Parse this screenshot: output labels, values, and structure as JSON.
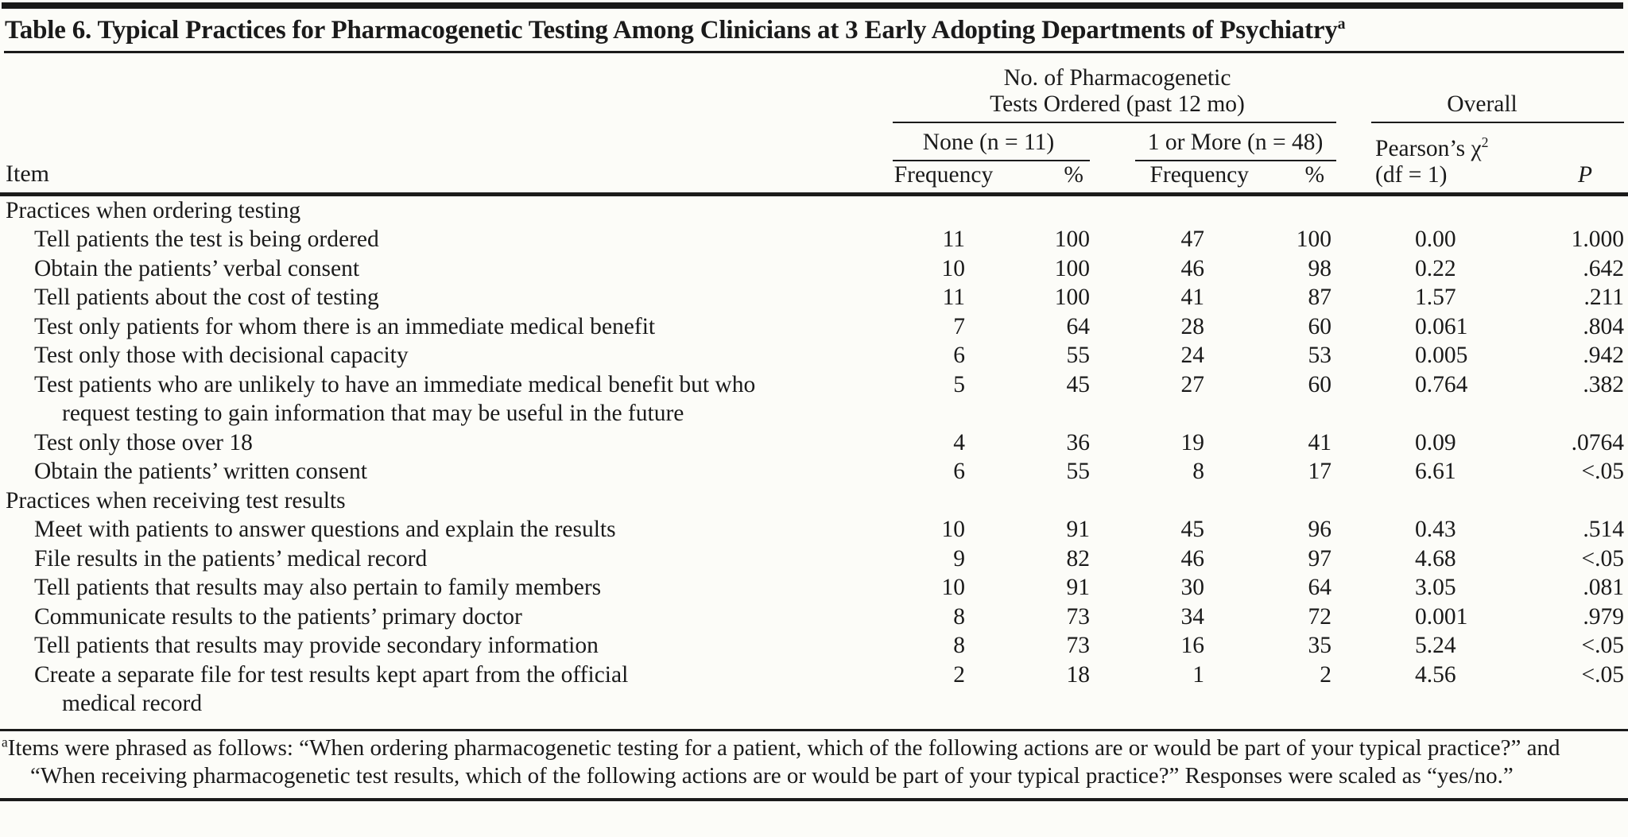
{
  "page": {
    "background_color": "#fcfcf8",
    "ink_color": "#1a1a1a"
  },
  "title": {
    "text": "Table 6. Typical Practices for Pharmacogenetic Testing Among Clinicians at 3 Early Adopting Departments of Psychiatry",
    "footnote_marker": "a"
  },
  "table": {
    "columns": {
      "item": "Item",
      "group_tests": {
        "line1": "No. of Pharmacogenetic",
        "line2": "Tests Ordered (past 12 mo)"
      },
      "group_overall": "Overall",
      "sub_none": "None (n = 11)",
      "sub_more": "1 or More (n = 48)",
      "frequency": "Frequency",
      "percent": "%",
      "chi": {
        "prefix": "Pearson’s χ",
        "sup": "2",
        "line2": "(df = 1)"
      },
      "p": "P"
    },
    "rows": [
      {
        "type": "section",
        "text": "Practices when ordering testing"
      },
      {
        "type": "item",
        "text": "Tell patients the test is being ordered",
        "values": [
          "11",
          "100",
          "47",
          "100",
          "0.00",
          "1.000"
        ]
      },
      {
        "type": "item",
        "text": "Obtain the patients’ verbal consent",
        "values": [
          "10",
          "100",
          "46",
          "98",
          "0.22",
          ".642"
        ]
      },
      {
        "type": "item",
        "text": "Tell patients about the cost of testing",
        "values": [
          "11",
          "100",
          "41",
          "87",
          "1.57",
          ".211"
        ]
      },
      {
        "type": "item",
        "text": "Test only patients for whom there is an immediate medical benefit",
        "values": [
          "7",
          "64",
          "28",
          "60",
          "0.061",
          ".804"
        ]
      },
      {
        "type": "item",
        "text": "Test only those with decisional capacity",
        "values": [
          "6",
          "55",
          "24",
          "53",
          "0.005",
          ".942"
        ]
      },
      {
        "type": "item",
        "text": "Test patients who are unlikely to have an immediate medical benefit but who",
        "text2": "request testing to gain information that may be useful in the future",
        "values": [
          "5",
          "45",
          "27",
          "60",
          "0.764",
          ".382"
        ]
      },
      {
        "type": "item",
        "text": "Test only those over 18",
        "values": [
          "4",
          "36",
          "19",
          "41",
          "0.09",
          ".0764"
        ]
      },
      {
        "type": "item",
        "text": "Obtain the patients’ written consent",
        "values": [
          "6",
          "55",
          "8",
          "17",
          "6.61",
          "<.05"
        ]
      },
      {
        "type": "section",
        "text": "Practices when receiving test results"
      },
      {
        "type": "item",
        "text": "Meet with patients to answer questions and explain the results",
        "values": [
          "10",
          "91",
          "45",
          "96",
          "0.43",
          ".514"
        ]
      },
      {
        "type": "item",
        "text": "File results in the patients’ medical record",
        "values": [
          "9",
          "82",
          "46",
          "97",
          "4.68",
          "<.05"
        ]
      },
      {
        "type": "item",
        "text": "Tell patients that results may also pertain to family members",
        "values": [
          "10",
          "91",
          "30",
          "64",
          "3.05",
          ".081"
        ]
      },
      {
        "type": "item",
        "text": "Communicate results to the patients’ primary doctor",
        "values": [
          "8",
          "73",
          "34",
          "72",
          "0.001",
          ".979"
        ]
      },
      {
        "type": "item",
        "text": "Tell patients that results may provide secondary information",
        "values": [
          "8",
          "73",
          "16",
          "35",
          "5.24",
          "<.05"
        ]
      },
      {
        "type": "item",
        "text": "Create a separate file for test results kept apart from the official",
        "text2": "medical record",
        "values": [
          "2",
          "18",
          "1",
          "2",
          "4.56",
          "<.05"
        ]
      }
    ]
  },
  "footnote": {
    "marker": "a",
    "text": "Items were phrased as follows: “When ordering pharmacogenetic testing for a patient, which of the following actions are or would be part of your typical practice?” and “When receiving pharmacogenetic test results, which of the following actions are or would be part of your typical practice?” Responses were scaled as “yes/no.”"
  }
}
